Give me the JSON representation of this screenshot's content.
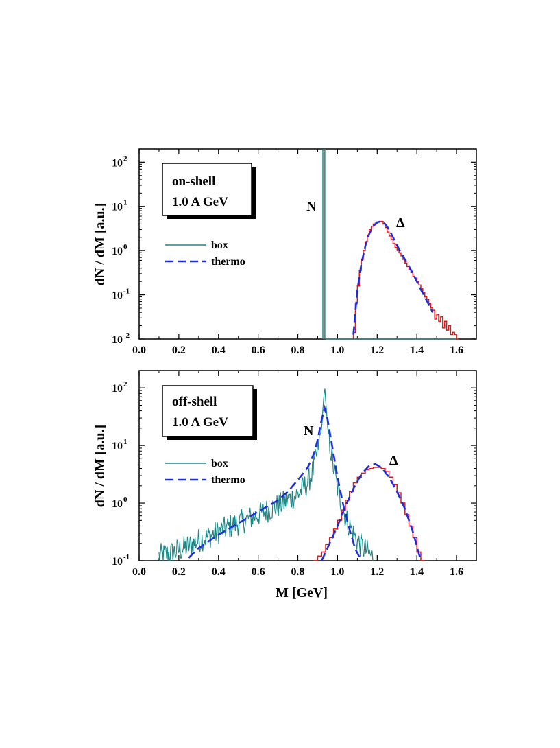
{
  "chart_data": [
    {
      "type": "line",
      "panel": "top",
      "ylabel": "dN / dM [a.u.]",
      "xlabel": "",
      "xlim": [
        0.0,
        1.7
      ],
      "ylim_log10": [
        -2,
        2.3
      ],
      "x_ticks": [
        0.0,
        0.2,
        0.4,
        0.6,
        0.8,
        1.0,
        1.2,
        1.4,
        1.6
      ],
      "x_tick_labels": [
        "0.0",
        "0.2",
        "0.4",
        "0.6",
        "0.8",
        "1.0",
        "1.2",
        "1.4",
        "1.6"
      ],
      "y_ticks": [
        {
          "value": -2,
          "base": "10",
          "exp": "-2"
        },
        {
          "value": -1,
          "base": "10",
          "exp": "-1"
        },
        {
          "value": 0,
          "base": "10",
          "exp": "0"
        },
        {
          "value": 1,
          "base": "10",
          "exp": "1"
        },
        {
          "value": 2,
          "base": "10",
          "exp": "2"
        }
      ],
      "label_box": [
        "on-shell",
        "1.0 A GeV"
      ],
      "legend": [
        {
          "name": "box",
          "color": "#1b8a88",
          "style": "solid"
        },
        {
          "name": "thermo",
          "color": "#1c2fe0",
          "style": "dashed"
        }
      ],
      "annotations": [
        {
          "text": "N",
          "x": 0.88,
          "y_log10": 0.8
        },
        {
          "text": "Δ",
          "x": 1.33,
          "y_log10": 0.6
        }
      ],
      "series": [
        {
          "name": "N (box)",
          "color": "#1b8a88",
          "kind": "spike",
          "x": [
            0.926,
            0.936
          ],
          "y_log10": [
            2.3,
            2.3
          ]
        },
        {
          "name": "N base (box)",
          "color": "#1b8a88",
          "kind": "line",
          "x": [
            0.94,
            1.6
          ],
          "y_log10": [
            -2.0,
            -2.0
          ]
        },
        {
          "name": "Δ (box)",
          "color": "#e01818",
          "kind": "step",
          "x": [
            1.08,
            1.09,
            1.1,
            1.11,
            1.12,
            1.13,
            1.14,
            1.15,
            1.16,
            1.17,
            1.18,
            1.19,
            1.2,
            1.21,
            1.22,
            1.23,
            1.24,
            1.25,
            1.26,
            1.27,
            1.28,
            1.29,
            1.3,
            1.31,
            1.32,
            1.33,
            1.34,
            1.35,
            1.36,
            1.37,
            1.38,
            1.39,
            1.4,
            1.41,
            1.42,
            1.43,
            1.44,
            1.45,
            1.46,
            1.47,
            1.48,
            1.49,
            1.5,
            1.51,
            1.52,
            1.53,
            1.54,
            1.55,
            1.56,
            1.57,
            1.58,
            1.59,
            1.6
          ],
          "y_log10": [
            -1.85,
            -1.2,
            -0.8,
            -0.45,
            -0.2,
            0.0,
            0.2,
            0.35,
            0.48,
            0.55,
            0.6,
            0.62,
            0.65,
            0.66,
            0.66,
            0.6,
            0.52,
            0.42,
            0.33,
            0.25,
            0.16,
            0.07,
            0.0,
            -0.05,
            -0.12,
            -0.2,
            -0.28,
            -0.36,
            -0.42,
            -0.5,
            -0.58,
            -0.62,
            -0.7,
            -0.78,
            -0.85,
            -0.95,
            -1.05,
            -1.1,
            -1.2,
            -1.3,
            -1.35,
            -1.55,
            -1.45,
            -1.6,
            -1.5,
            -1.75,
            -1.6,
            -1.8,
            -1.7,
            -1.9,
            -1.85,
            -1.9,
            -2.0
          ]
        },
        {
          "name": "Δ (thermo)",
          "color": "#1c2fe0",
          "kind": "dashed",
          "x": [
            1.08,
            1.1,
            1.12,
            1.14,
            1.16,
            1.18,
            1.2,
            1.22,
            1.24,
            1.26,
            1.28,
            1.3,
            1.32,
            1.34,
            1.36,
            1.38,
            1.4,
            1.42,
            1.44,
            1.46,
            1.48
          ],
          "y_log10": [
            -1.9,
            -0.9,
            -0.3,
            0.1,
            0.38,
            0.55,
            0.64,
            0.66,
            0.6,
            0.48,
            0.3,
            0.12,
            -0.05,
            -0.2,
            -0.35,
            -0.52,
            -0.7,
            -0.88,
            -1.05,
            -1.22,
            -1.4
          ]
        }
      ]
    },
    {
      "type": "line",
      "panel": "bottom",
      "ylabel": "dN / dM [a.u.]",
      "xlabel": "M [GeV]",
      "xlim": [
        0.0,
        1.7
      ],
      "ylim_log10": [
        -1,
        2.3
      ],
      "x_ticks": [
        0.0,
        0.2,
        0.4,
        0.6,
        0.8,
        1.0,
        1.2,
        1.4,
        1.6
      ],
      "x_tick_labels": [
        "0.0",
        "0.2",
        "0.4",
        "0.6",
        "0.8",
        "1.0",
        "1.2",
        "1.4",
        "1.6"
      ],
      "y_ticks": [
        {
          "value": -1,
          "base": "10",
          "exp": "-1"
        },
        {
          "value": 0,
          "base": "10",
          "exp": "0"
        },
        {
          "value": 1,
          "base": "10",
          "exp": "1"
        },
        {
          "value": 2,
          "base": "10",
          "exp": "2"
        }
      ],
      "label_box": [
        "off-shell",
        "1.0 A GeV"
      ],
      "legend": [
        {
          "name": "box",
          "color": "#1b8a88",
          "style": "solid"
        },
        {
          "name": "thermo",
          "color": "#1c2fe0",
          "style": "dashed"
        }
      ],
      "annotations": [
        {
          "text": "N",
          "x": 0.86,
          "y_log10": 1.35
        },
        {
          "text": "Δ",
          "x": 1.23,
          "y_log10": 0.8
        }
      ],
      "series": [
        {
          "name": "N (box)",
          "color": "#1b8a88",
          "kind": "noisy",
          "x": [
            0.1,
            0.15,
            0.2,
            0.25,
            0.3,
            0.35,
            0.4,
            0.45,
            0.5,
            0.55,
            0.6,
            0.65,
            0.7,
            0.75,
            0.8,
            0.85,
            0.88,
            0.9,
            0.92,
            0.935,
            0.95,
            0.97,
            1.0,
            1.03,
            1.06,
            1.09,
            1.12,
            1.15,
            1.18
          ],
          "y_log10": [
            -0.92,
            -0.88,
            -0.82,
            -0.75,
            -0.65,
            -0.58,
            -0.5,
            -0.42,
            -0.35,
            -0.28,
            -0.2,
            -0.12,
            -0.05,
            0.05,
            0.15,
            0.35,
            0.6,
            0.9,
            1.3,
            2.05,
            1.3,
            0.8,
            0.25,
            -0.15,
            -0.4,
            -0.6,
            -0.75,
            -0.85,
            -0.95
          ]
        },
        {
          "name": "N (thermo)",
          "color": "#1c2fe0",
          "kind": "dashed",
          "x": [
            0.25,
            0.3,
            0.4,
            0.5,
            0.6,
            0.7,
            0.75,
            0.8,
            0.85,
            0.88,
            0.9,
            0.92,
            0.935,
            0.95,
            0.97,
            1.0,
            1.03,
            1.06,
            1.09,
            1.12
          ],
          "y_log10": [
            -0.95,
            -0.78,
            -0.55,
            -0.35,
            -0.15,
            0.05,
            0.2,
            0.4,
            0.62,
            0.85,
            1.1,
            1.45,
            1.65,
            1.45,
            1.05,
            0.45,
            -0.05,
            -0.45,
            -0.8,
            -1.0
          ]
        },
        {
          "name": "Δ (box)",
          "color": "#e01818",
          "kind": "step",
          "x": [
            0.88,
            0.9,
            0.92,
            0.94,
            0.96,
            0.98,
            1.0,
            1.02,
            1.04,
            1.06,
            1.08,
            1.1,
            1.12,
            1.14,
            1.16,
            1.18,
            1.2,
            1.22,
            1.24,
            1.26,
            1.28,
            1.3,
            1.32,
            1.34,
            1.36,
            1.38,
            1.4,
            1.42
          ],
          "y_log10": [
            -1.0,
            -0.92,
            -0.85,
            -0.72,
            -0.6,
            -0.45,
            -0.3,
            -0.12,
            0.05,
            0.2,
            0.35,
            0.45,
            0.52,
            0.58,
            0.6,
            0.62,
            0.62,
            0.6,
            0.55,
            0.45,
            0.32,
            0.18,
            0.0,
            -0.2,
            -0.4,
            -0.6,
            -0.85,
            -1.0
          ]
        },
        {
          "name": "Δ (thermo)",
          "color": "#1c2fe0",
          "kind": "dashed",
          "x": [
            0.92,
            0.96,
            1.0,
            1.04,
            1.08,
            1.12,
            1.16,
            1.19,
            1.22,
            1.26,
            1.3,
            1.34,
            1.38,
            1.42
          ],
          "y_log10": [
            -1.0,
            -0.7,
            -0.4,
            -0.05,
            0.25,
            0.5,
            0.65,
            0.68,
            0.62,
            0.45,
            0.2,
            -0.1,
            -0.5,
            -1.0
          ]
        }
      ]
    }
  ]
}
